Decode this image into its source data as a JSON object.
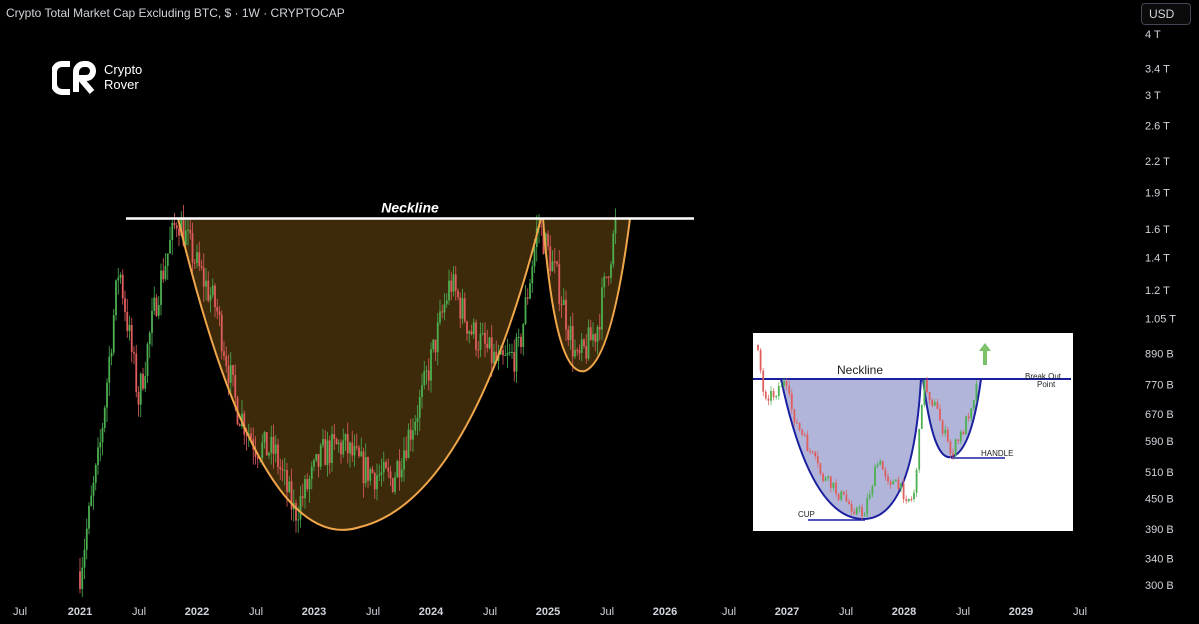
{
  "header": {
    "title": "Crypto Total Market Cap Excluding BTC, $ · 1W · CRYPTOCAP"
  },
  "logo": {
    "line1": "Crypto",
    "line2": "Rover"
  },
  "currency_button": "USD",
  "colors": {
    "background": "#000000",
    "up_candle": "#4caf50",
    "down_candle": "#e05d5d",
    "neckline": "#ffffff",
    "pattern_fill": "#3d2a0a",
    "pattern_stroke": "#f0a64a"
  },
  "chart_data": {
    "type": "line",
    "title": "Crypto Total Market Cap Excluding BTC, $ · 1W · CRYPTOCAP",
    "y_scale": "log",
    "y_tick_labels": [
      "4 T",
      "3.4 T",
      "3 T",
      "2.6 T",
      "2.2 T",
      "1.9 T",
      "1.6 T",
      "1.4 T",
      "1.2 T",
      "1.05 T",
      "890 B",
      "770 B",
      "670 B",
      "590 B",
      "510 B",
      "450 B",
      "390 B",
      "340 B",
      "300 B"
    ],
    "x_tick_labels": [
      "Jul",
      "2021",
      "Jul",
      "2022",
      "Jul",
      "2023",
      "Jul",
      "2024",
      "Jul",
      "2025",
      "Jul",
      "2026",
      "Jul",
      "2027",
      "Jul",
      "2028",
      "Jul",
      "2029",
      "Jul"
    ],
    "x_year_labels": [
      "2021",
      "2022",
      "2023",
      "2024",
      "2025",
      "2026",
      "2027",
      "2028",
      "2029"
    ],
    "series": [
      {
        "values_approx_B": [
          [
            "2021-01",
            320
          ],
          [
            "2021-03",
            560
          ],
          [
            "2021-05",
            1350
          ],
          [
            "2021-07",
            720
          ],
          [
            "2021-09",
            1200
          ],
          [
            "2021-11",
            1700
          ],
          [
            "2022-01",
            1350
          ],
          [
            "2022-03",
            1100
          ],
          [
            "2022-05",
            700
          ],
          [
            "2022-07",
            580
          ],
          [
            "2022-09",
            560
          ],
          [
            "2022-11",
            420
          ],
          [
            "2023-02",
            560
          ],
          [
            "2023-04",
            580
          ],
          [
            "2023-06",
            520
          ],
          [
            "2023-09",
            490
          ],
          [
            "2023-12",
            720
          ],
          [
            "2024-03",
            1250
          ],
          [
            "2024-05",
            1000
          ],
          [
            "2024-08",
            840
          ],
          [
            "2024-10",
            900
          ],
          [
            "2024-12",
            1650
          ],
          [
            "2025-02",
            1250
          ],
          [
            "2025-04",
            850
          ],
          [
            "2025-06",
            1000
          ],
          [
            "2025-08",
            1650
          ]
        ]
      }
    ],
    "annotations": {
      "neckline_label": "Neckline",
      "neckline_level_B": 1680
    },
    "inset": {
      "neckline_label": "Neckline",
      "breakout_label_line1": "Break Out",
      "breakout_label_line2": "Point",
      "handle_label": "HANDLE",
      "cup_label": "CUP"
    }
  }
}
